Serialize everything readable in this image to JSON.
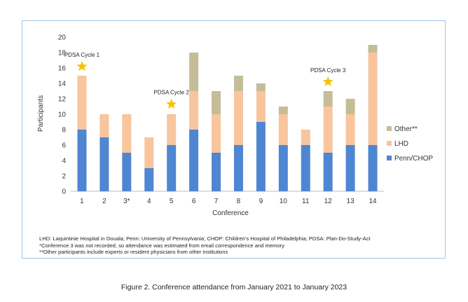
{
  "chart_data": {
    "type": "bar",
    "stacked": true,
    "categories": [
      "1",
      "2",
      "3*",
      "4",
      "5",
      "6",
      "7",
      "8",
      "9",
      "10",
      "11",
      "12",
      "13",
      "14"
    ],
    "series": [
      {
        "name": "Penn/CHOP",
        "color": "#4f86d2",
        "values": [
          8,
          7,
          5,
          3,
          6,
          8,
          5,
          6,
          9,
          6,
          6,
          5,
          6,
          6
        ]
      },
      {
        "name": "LHD",
        "color": "#f8c59d",
        "values": [
          7,
          3,
          5,
          4,
          4,
          5,
          5,
          7,
          4,
          4,
          2,
          6,
          4,
          12
        ]
      },
      {
        "name": "Other**",
        "color": "#c5bd98",
        "values": [
          0,
          0,
          0,
          0,
          0,
          5,
          3,
          2,
          1,
          1,
          0,
          2,
          2,
          1
        ]
      }
    ],
    "legend_order": [
      "Other**",
      "LHD",
      "Penn/CHOP"
    ],
    "legend_position": "right",
    "xlabel": "Conference",
    "ylabel": "Participants",
    "ylim": [
      0,
      20
    ],
    "yticks": [
      0,
      2,
      4,
      6,
      8,
      10,
      12,
      14,
      16,
      18,
      20
    ],
    "grid": false,
    "annotations": [
      {
        "category": "1",
        "label": "PDSA Cycle 1",
        "star_at": 16.2,
        "star_color": "#f5c400"
      },
      {
        "category": "5",
        "label": "PDSA Cycle 2",
        "star_at": 11.3,
        "star_color": "#f5c400"
      },
      {
        "category": "12",
        "label": "PDSA Cycle 3",
        "star_at": 14.2,
        "star_color": "#f5c400"
      }
    ]
  },
  "footnotes": [
    "LHD: Laquintinie Hospital in Douala; Penn: University of Pennsylvania; CHOP: Children’s Hospital of Philadelphia; PDSA: Plan-Do-Study-Act",
    "*Conference 3 was not recorded, so attendance was estimated from email correspondence and memory",
    "**Other participants include experts or resident physicians from other institutions"
  ],
  "caption": "Figure 2. Conference attendance from January 2021 to January 2023"
}
